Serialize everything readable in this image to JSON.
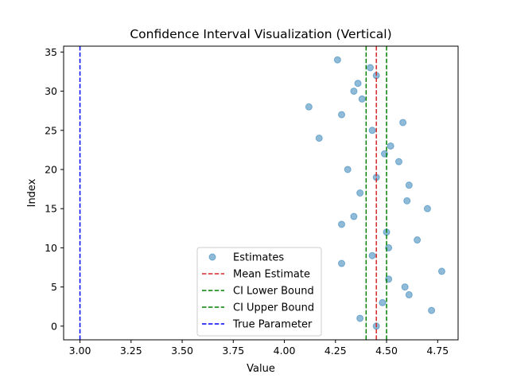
{
  "chart_data": {
    "type": "scatter",
    "title": "Confidence Interval Visualization (Vertical)",
    "xlabel": "Value",
    "ylabel": "Index",
    "xlim": [
      2.92,
      4.85
    ],
    "ylim": [
      -1.75,
      35.75
    ],
    "xticks": [
      3.0,
      3.25,
      3.5,
      3.75,
      4.0,
      4.25,
      4.5,
      4.75
    ],
    "xtick_labels": [
      "3.00",
      "3.25",
      "3.50",
      "3.75",
      "4.00",
      "4.25",
      "4.50",
      "4.75"
    ],
    "yticks": [
      0,
      5,
      10,
      15,
      20,
      25,
      30,
      35
    ],
    "ytick_labels": [
      "0",
      "5",
      "10",
      "15",
      "20",
      "25",
      "30",
      "35"
    ],
    "grid": false,
    "legend_position": "lower-center",
    "series": [
      {
        "name": "Estimates",
        "kind": "scatter",
        "color": "#1f77b4",
        "alpha": 0.5,
        "points": [
          [
            4.45,
            0
          ],
          [
            4.37,
            1
          ],
          [
            4.72,
            2
          ],
          [
            4.48,
            3
          ],
          [
            4.61,
            4
          ],
          [
            4.59,
            5
          ],
          [
            4.51,
            6
          ],
          [
            4.77,
            7
          ],
          [
            4.28,
            8
          ],
          [
            4.43,
            9
          ],
          [
            4.51,
            10
          ],
          [
            4.65,
            11
          ],
          [
            4.5,
            12
          ],
          [
            4.28,
            13
          ],
          [
            4.34,
            14
          ],
          [
            4.7,
            15
          ],
          [
            4.6,
            16
          ],
          [
            4.37,
            17
          ],
          [
            4.61,
            18
          ],
          [
            4.45,
            19
          ],
          [
            4.31,
            20
          ],
          [
            4.56,
            21
          ],
          [
            4.49,
            22
          ],
          [
            4.52,
            23
          ],
          [
            4.17,
            24
          ],
          [
            4.43,
            25
          ],
          [
            4.58,
            26
          ],
          [
            4.28,
            27
          ],
          [
            4.12,
            28
          ],
          [
            4.38,
            29
          ],
          [
            4.34,
            30
          ],
          [
            4.36,
            31
          ],
          [
            4.45,
            32
          ],
          [
            4.42,
            33
          ],
          [
            4.26,
            34
          ]
        ]
      },
      {
        "name": "Mean Estimate",
        "kind": "vline",
        "x": 4.45,
        "color": "#d62728"
      },
      {
        "name": "CI Lower Bound",
        "kind": "vline",
        "x": 4.4,
        "color": "#008000"
      },
      {
        "name": "CI Upper Bound",
        "kind": "vline",
        "x": 4.5,
        "color": "#008000"
      },
      {
        "name": "True Parameter",
        "kind": "vline",
        "x": 3.0,
        "color": "#0000ff"
      }
    ]
  }
}
